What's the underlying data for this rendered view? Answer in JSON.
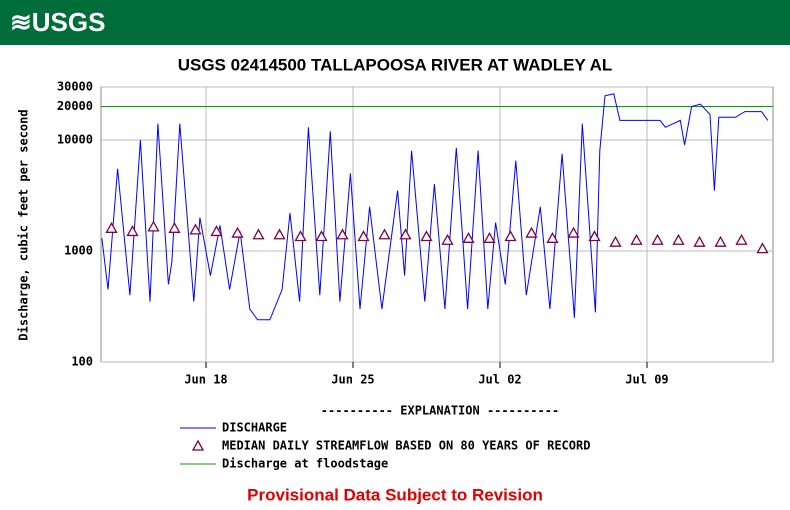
{
  "header": {
    "logo": "≋USGS"
  },
  "chart_data": {
    "type": "line",
    "title": "USGS 02414500 TALLAPOOSA RIVER AT WADLEY AL",
    "ylabel": "Discharge, cubic feet per second",
    "log_y": true,
    "ylim": [
      100,
      30000
    ],
    "yticks": [
      100,
      1000,
      10000,
      20000,
      30000
    ],
    "xlim": [
      "Jun 13 00:00",
      "Jul 15 00:00"
    ],
    "xticks": [
      {
        "value": "Jun 18 00:00",
        "label": "Jun 18"
      },
      {
        "value": "Jun 25 00:00",
        "label": "Jun 25"
      },
      {
        "value": "Jul 02 00:00",
        "label": "Jul 02"
      },
      {
        "value": "Jul 09 00:00",
        "label": "Jul 09"
      }
    ],
    "grid": true,
    "legend_title": "---------- EXPLANATION ----------",
    "series": [
      {
        "name": "DISCHARGE",
        "color": "#0000ff",
        "marker": "none",
        "x": [
          "Jun 13 01:00",
          "Jun 13 08:00",
          "Jun 13 19:00",
          "Jun 14 09:00",
          "Jun 14 21:00",
          "Jun 15 08:00",
          "Jun 15 17:00",
          "Jun 16 05:00",
          "Jun 16 09:00",
          "Jun 16 18:00",
          "Jun 17 10:00",
          "Jun 17 17:00",
          "Jun 18 05:00",
          "Jun 18 16:00",
          "Jun 19 03:00",
          "Jun 19 15:00",
          "Jun 20 02:00",
          "Jun 20 11:00",
          "Jun 21 01:00",
          "Jun 21 15:00",
          "Jun 22 00:00",
          "Jun 22 11:00",
          "Jun 22 21:00",
          "Jun 23 10:00",
          "Jun 23 22:00",
          "Jun 24 09:00",
          "Jun 24 21:00",
          "Jun 25 08:00",
          "Jun 25 19:00",
          "Jun 26 09:00",
          "Jun 27 03:00",
          "Jun 27 11:00",
          "Jun 27 19:00",
          "Jun 28 10:00",
          "Jun 28 21:00",
          "Jun 29 09:00",
          "Jun 29 22:00",
          "Jun 30 11:00",
          "Jun 30 23:00",
          "Jul 01 10:00",
          "Jul 01 19:00",
          "Jul 02 06:00",
          "Jul 02 18:00",
          "Jul 03 06:00",
          "Jul 03 22:00",
          "Jul 04 09:00",
          "Jul 04 23:00",
          "Jul 05 13:00",
          "Jul 05 22:00",
          "Jul 06 13:00",
          "Jul 06 18:00",
          "Jul 07 00:00",
          "Jul 07 10:00",
          "Jul 07 17:00",
          "Jul 09 15:00",
          "Jul 09 21:00",
          "Jul 10 14:00",
          "Jul 10 19:00",
          "Jul 11 03:00",
          "Jul 11 13:00",
          "Jul 12 00:00",
          "Jul 12 05:00",
          "Jul 12 10:00",
          "Jul 13 05:00",
          "Jul 13 16:00",
          "Jul 14 11:00",
          "Jul 14 18:00"
        ],
        "values": [
          1300,
          450,
          5500,
          400,
          10000,
          350,
          14000,
          500,
          800,
          14000,
          350,
          2000,
          600,
          1700,
          450,
          1500,
          300,
          240,
          240,
          450,
          2200,
          350,
          13000,
          400,
          12000,
          350,
          5000,
          300,
          2500,
          300,
          3500,
          600,
          8000,
          350,
          4000,
          300,
          8500,
          300,
          8000,
          300,
          1800,
          500,
          6500,
          400,
          2500,
          300,
          7500,
          250,
          14000,
          280,
          8000,
          25000,
          26000,
          15000,
          15000,
          13000,
          15000,
          9000,
          20000,
          21000,
          17000,
          3500,
          16000,
          16000,
          18000,
          18000,
          15000
        ]
      },
      {
        "name": "MEDIAN DAILY STREAMFLOW BASED ON 80 YEARS OF RECORD",
        "color": "#800040",
        "marker": "triangle",
        "x": [
          "Jun 13 12:00",
          "Jun 14 12:00",
          "Jun 15 12:00",
          "Jun 16 12:00",
          "Jun 17 12:00",
          "Jun 18 12:00",
          "Jun 19 12:00",
          "Jun 20 12:00",
          "Jun 21 12:00",
          "Jun 22 12:00",
          "Jun 23 12:00",
          "Jun 24 12:00",
          "Jun 25 12:00",
          "Jun 26 12:00",
          "Jun 27 12:00",
          "Jun 28 12:00",
          "Jun 29 12:00",
          "Jun 30 12:00",
          "Jul 01 12:00",
          "Jul 02 12:00",
          "Jul 03 12:00",
          "Jul 04 12:00",
          "Jul 05 12:00",
          "Jul 06 12:00",
          "Jul 07 12:00",
          "Jul 08 12:00",
          "Jul 09 12:00",
          "Jul 10 12:00",
          "Jul 11 12:00",
          "Jul 12 12:00",
          "Jul 13 12:00",
          "Jul 14 12:00"
        ],
        "values": [
          1600,
          1500,
          1650,
          1600,
          1550,
          1500,
          1450,
          1400,
          1400,
          1350,
          1350,
          1400,
          1350,
          1400,
          1400,
          1350,
          1250,
          1300,
          1300,
          1350,
          1450,
          1300,
          1450,
          1350,
          1200,
          1250,
          1250,
          1250,
          1200,
          1200,
          1250,
          1050
        ]
      }
    ],
    "floodstage": {
      "name": "Discharge at floodstage",
      "color": "#00a000",
      "value": 20000
    },
    "footnote": "Provisional Data Subject to Revision"
  }
}
